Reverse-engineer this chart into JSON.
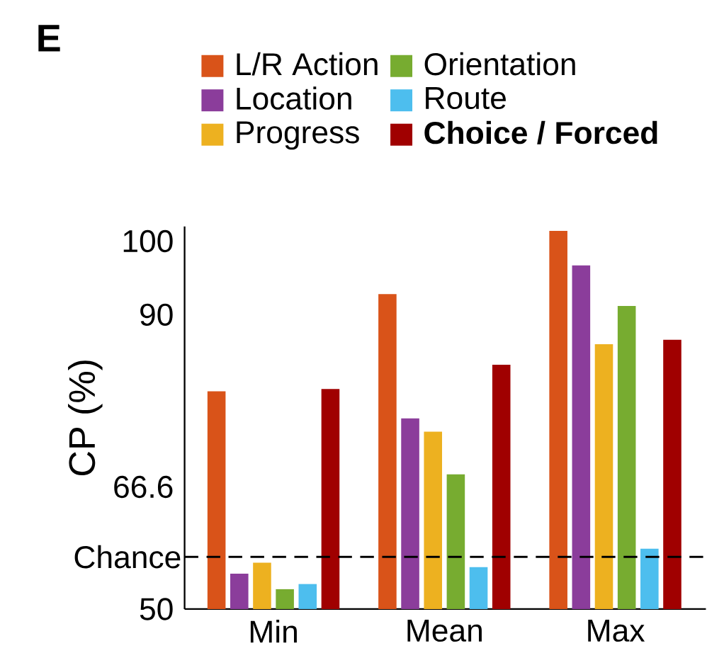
{
  "chart_data": {
    "type": "bar",
    "title": "E",
    "ylabel": "CP (%)",
    "categories": [
      "Min",
      "Mean",
      "Max"
    ],
    "series": [
      {
        "name": "L/R Action",
        "color": "#d95319",
        "values": [
          79.6,
          92.8,
          101.4
        ]
      },
      {
        "name": "Location",
        "color": "#8b3d9b",
        "values": [
          54.8,
          75.9,
          96.7
        ]
      },
      {
        "name": "Progress",
        "color": "#edb120",
        "values": [
          56.3,
          74.1,
          86.0
        ]
      },
      {
        "name": "Orientation",
        "color": "#77ac30",
        "values": [
          52.7,
          68.3,
          91.2
        ]
      },
      {
        "name": "Route",
        "color": "#4dbeee",
        "values": [
          53.4,
          55.7,
          58.2
        ]
      },
      {
        "name": "**Choice / Forced**",
        "color": "#a00000",
        "values": [
          79.9,
          83.2,
          86.6
        ]
      }
    ],
    "ylim": [
      50,
      102
    ],
    "yticks": [
      50,
      66.6,
      90,
      100
    ],
    "ref_lines": [
      {
        "axis": "y",
        "value": 57.1,
        "label": "Chance",
        "color": "#000000",
        "line_style": "dashed"
      }
    ],
    "legend": "top"
  }
}
